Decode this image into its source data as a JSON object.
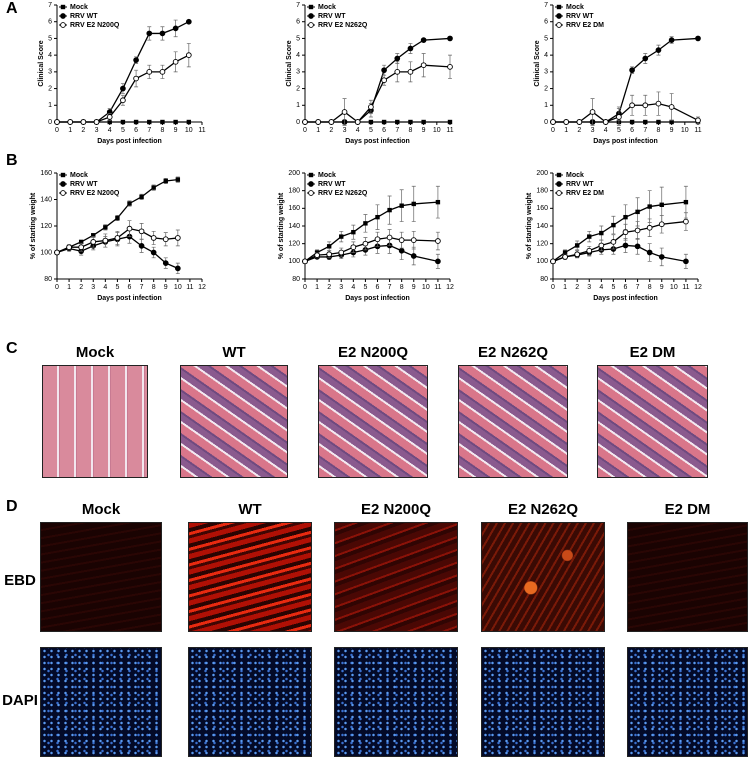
{
  "panel_labels": [
    "A",
    "B",
    "C",
    "D"
  ],
  "chart_data": [
    {
      "type": "line",
      "x_label": "Days post infection",
      "y_label": "Clinical Score",
      "x": [
        0,
        1,
        2,
        3,
        4,
        5,
        6,
        7,
        8,
        9,
        10
      ],
      "xlim": [
        0,
        11
      ],
      "xticks": [
        0,
        1,
        2,
        3,
        4,
        5,
        6,
        7,
        8,
        9,
        10,
        11
      ],
      "ylim": [
        0,
        7
      ],
      "yticks": [
        0,
        1,
        2,
        3,
        4,
        5,
        6,
        7
      ],
      "series": [
        {
          "name": "Mock",
          "marker": "square",
          "color": "#000000",
          "values": [
            0,
            0,
            0,
            0,
            0,
            0,
            0,
            0,
            0,
            0,
            0
          ]
        },
        {
          "name": "RRV WT",
          "marker": "filled-circle",
          "color": "#000000",
          "values": [
            0,
            0,
            0,
            0,
            0.6,
            2.0,
            3.7,
            5.3,
            5.3,
            5.6,
            6.0
          ],
          "errors": [
            0,
            0,
            0,
            0,
            0.2,
            0.3,
            0.2,
            0.4,
            0.4,
            0.5,
            0
          ]
        },
        {
          "name": "RRV E2 N200Q",
          "marker": "open-circle",
          "color": "#000000",
          "values": [
            0,
            0,
            0,
            0,
            0.3,
            1.3,
            2.6,
            3.0,
            3.0,
            3.6,
            4.0
          ],
          "errors": [
            0,
            0,
            0,
            0,
            0.2,
            0.3,
            0.5,
            0.4,
            0.4,
            0.6,
            0.7
          ]
        }
      ]
    },
    {
      "type": "line",
      "x_label": "Days post infection",
      "y_label": "Clinical Score",
      "x": [
        0,
        1,
        2,
        3,
        4,
        5,
        6,
        7,
        8,
        9,
        11
      ],
      "xlim": [
        0,
        11
      ],
      "xticks": [
        0,
        1,
        2,
        3,
        4,
        5,
        6,
        7,
        8,
        9,
        10,
        11
      ],
      "ylim": [
        0,
        7
      ],
      "yticks": [
        0,
        1,
        2,
        3,
        4,
        5,
        6,
        7
      ],
      "series": [
        {
          "name": "Mock",
          "marker": "square",
          "color": "#000000",
          "values": [
            0,
            0,
            0,
            0,
            0,
            0,
            0,
            0,
            0,
            0,
            0
          ]
        },
        {
          "name": "RRV WT",
          "marker": "filled-circle",
          "color": "#000000",
          "values": [
            0,
            0,
            0,
            0,
            0,
            0.7,
            3.1,
            3.8,
            4.4,
            4.9,
            5.0
          ],
          "errors": [
            0,
            0,
            0,
            0,
            0,
            0.4,
            0.3,
            0.3,
            0.3,
            0.1,
            0
          ]
        },
        {
          "name": "RRV E2 N262Q",
          "marker": "open-circle",
          "color": "#000000",
          "values": [
            0,
            0,
            0,
            0.6,
            0,
            0.9,
            2.5,
            3.0,
            3.0,
            3.4,
            3.3
          ],
          "errors": [
            0,
            0,
            0,
            0.8,
            0,
            0.4,
            0.3,
            0.6,
            0.6,
            0.7,
            0.7
          ]
        }
      ]
    },
    {
      "type": "line",
      "x_label": "Days post infection",
      "y_label": "Clinical Score",
      "x": [
        0,
        1,
        2,
        3,
        4,
        5,
        6,
        7,
        8,
        9,
        11
      ],
      "xlim": [
        0,
        11
      ],
      "xticks": [
        0,
        1,
        2,
        3,
        4,
        5,
        6,
        7,
        8,
        9,
        10,
        11
      ],
      "ylim": [
        0,
        7
      ],
      "yticks": [
        0,
        1,
        2,
        3,
        4,
        5,
        6,
        7
      ],
      "series": [
        {
          "name": "Mock",
          "marker": "square",
          "color": "#000000",
          "values": [
            0,
            0,
            0,
            0,
            0,
            0,
            0,
            0,
            0,
            0,
            0
          ]
        },
        {
          "name": "RRV WT",
          "marker": "filled-circle",
          "color": "#000000",
          "values": [
            0,
            0,
            0,
            0,
            0,
            0.5,
            3.1,
            3.8,
            4.3,
            4.9,
            5.0
          ],
          "errors": [
            0,
            0,
            0,
            0,
            0,
            0.4,
            0.2,
            0.3,
            0.3,
            0.2,
            0
          ]
        },
        {
          "name": "RRV E2 DM",
          "marker": "open-circle",
          "color": "#000000",
          "values": [
            0,
            0,
            0,
            0.6,
            0,
            0.3,
            1.0,
            1.0,
            1.1,
            0.9,
            0.1
          ],
          "errors": [
            0,
            0,
            0,
            0.8,
            0,
            0.5,
            0.6,
            0.6,
            0.7,
            0.8,
            0.2
          ]
        }
      ]
    },
    {
      "type": "line",
      "x_label": "Days post infection",
      "y_label": "% of starting weight",
      "x": [
        0,
        1,
        2,
        3,
        4,
        5,
        6,
        7,
        8,
        9,
        10
      ],
      "xlim": [
        0,
        12
      ],
      "xticks": [
        0,
        1,
        2,
        3,
        4,
        5,
        6,
        7,
        8,
        9,
        10,
        11,
        12
      ],
      "ylim": [
        80,
        160
      ],
      "yticks": [
        80,
        100,
        120,
        140,
        160
      ],
      "series": [
        {
          "name": "Mock",
          "marker": "square",
          "color": "#000000",
          "values": [
            100,
            104,
            108,
            113,
            119,
            126,
            137,
            142,
            149,
            154,
            155
          ],
          "errors": [
            0,
            1,
            1,
            1,
            2,
            2,
            2,
            2,
            2,
            2,
            2
          ]
        },
        {
          "name": "RRV WT",
          "marker": "filled-circle",
          "color": "#000000",
          "values": [
            100,
            103,
            101,
            105,
            108,
            110,
            112,
            105,
            100,
            92,
            88
          ],
          "errors": [
            0,
            2,
            3,
            3,
            4,
            5,
            5,
            5,
            4,
            4,
            4
          ]
        },
        {
          "name": "RRV E2 N200Q",
          "marker": "open-circle",
          "color": "#000000",
          "values": [
            100,
            104,
            104,
            108,
            109,
            111,
            118,
            116,
            111,
            110,
            111
          ],
          "errors": [
            0,
            2,
            3,
            4,
            5,
            5,
            6,
            6,
            5,
            5,
            6
          ]
        }
      ]
    },
    {
      "type": "line",
      "x_label": "Days post infection",
      "y_label": "% of starting weight",
      "x": [
        0,
        1,
        2,
        3,
        4,
        5,
        6,
        7,
        8,
        9,
        11
      ],
      "xlim": [
        0,
        12
      ],
      "xticks": [
        0,
        1,
        2,
        3,
        4,
        5,
        6,
        7,
        8,
        9,
        10,
        11,
        12
      ],
      "ylim": [
        80,
        200
      ],
      "yticks": [
        80,
        100,
        120,
        140,
        160,
        180,
        200
      ],
      "series": [
        {
          "name": "Mock",
          "marker": "square",
          "color": "#000000",
          "values": [
            100,
            110,
            117,
            128,
            133,
            143,
            150,
            158,
            163,
            165,
            167
          ],
          "errors": [
            0,
            3,
            5,
            6,
            8,
            10,
            14,
            16,
            18,
            20,
            18
          ]
        },
        {
          "name": "RRV WT",
          "marker": "filled-circle",
          "color": "#000000",
          "values": [
            100,
            105,
            105,
            107,
            110,
            113,
            117,
            118,
            112,
            106,
            100
          ],
          "errors": [
            0,
            2,
            3,
            4,
            5,
            6,
            8,
            9,
            10,
            10,
            8
          ]
        },
        {
          "name": "RRV E2 N262Q",
          "marker": "open-circle",
          "color": "#000000",
          "values": [
            100,
            107,
            108,
            110,
            116,
            120,
            125,
            127,
            124,
            124,
            123
          ],
          "errors": [
            0,
            3,
            4,
            5,
            6,
            7,
            8,
            9,
            9,
            10,
            10
          ]
        }
      ]
    },
    {
      "type": "line",
      "x_label": "Days post infection",
      "y_label": "% of starting weight",
      "x": [
        0,
        1,
        2,
        3,
        4,
        5,
        6,
        7,
        8,
        9,
        11
      ],
      "xlim": [
        0,
        12
      ],
      "xticks": [
        0,
        1,
        2,
        3,
        4,
        5,
        6,
        7,
        8,
        9,
        10,
        11,
        12
      ],
      "ylim": [
        80,
        200
      ],
      "yticks": [
        80,
        100,
        120,
        140,
        160,
        180,
        200
      ],
      "series": [
        {
          "name": "Mock",
          "marker": "square",
          "color": "#000000",
          "values": [
            100,
            110,
            118,
            128,
            132,
            141,
            150,
            156,
            162,
            164,
            167
          ],
          "errors": [
            0,
            3,
            5,
            6,
            8,
            10,
            14,
            16,
            18,
            20,
            18
          ]
        },
        {
          "name": "RRV WT",
          "marker": "filled-circle",
          "color": "#000000",
          "values": [
            100,
            105,
            107,
            110,
            113,
            114,
            118,
            117,
            110,
            105,
            100
          ],
          "errors": [
            0,
            2,
            3,
            4,
            5,
            6,
            8,
            9,
            10,
            10,
            8
          ]
        },
        {
          "name": "RRV E2 DM",
          "marker": "open-circle",
          "color": "#000000",
          "values": [
            100,
            105,
            108,
            112,
            118,
            122,
            133,
            135,
            138,
            142,
            145
          ],
          "errors": [
            0,
            3,
            4,
            5,
            6,
            8,
            9,
            10,
            10,
            10,
            10
          ]
        }
      ]
    }
  ],
  "histology": {
    "titles": [
      "Mock",
      "WT",
      "E2 N200Q",
      "E2 N262Q",
      "E2 DM"
    ]
  },
  "fluorescence": {
    "titles": [
      "Mock",
      "WT",
      "E2 N200Q",
      "E2 N262Q",
      "E2 DM"
    ],
    "rows": [
      "EBD",
      "DAPI"
    ]
  }
}
